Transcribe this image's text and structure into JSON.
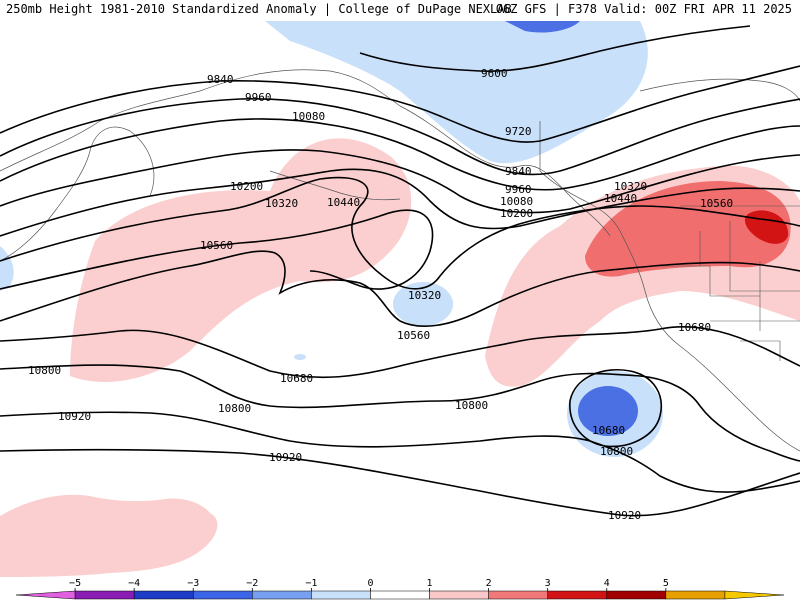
{
  "header": {
    "left_title": "250mb Height 1981-2010 Standardized Anomaly | College of DuPage NEXLAB",
    "right_title": "06Z GFS | F378 Valid: 00Z FRI APR 11 2025"
  },
  "contour_labels": [
    "9600",
    "9720",
    "9840",
    "9960",
    "10080",
    "10200",
    "10320",
    "10440",
    "10560",
    "10680",
    "10800",
    "10920"
  ],
  "colorbar": {
    "ticks": [
      "−5",
      "−4",
      "−3",
      "−2",
      "−1",
      "0",
      "1",
      "2",
      "3",
      "4",
      "5"
    ],
    "colors": [
      "#e060e0",
      "#8a1eb4",
      "#1e3cc8",
      "#3c64e6",
      "#78a0f0",
      "#c8e0fa",
      "#ffffff",
      "#fac8c8",
      "#f07878",
      "#d21414",
      "#a00000",
      "#e6a000",
      "#f5c800"
    ]
  },
  "colors": {
    "neg_light": "#c8e0fa",
    "neg_mid": "#4a70e4",
    "pos_light": "#fbcfcf",
    "pos_mid": "#f06e6e",
    "pos_dark": "#d21414"
  }
}
